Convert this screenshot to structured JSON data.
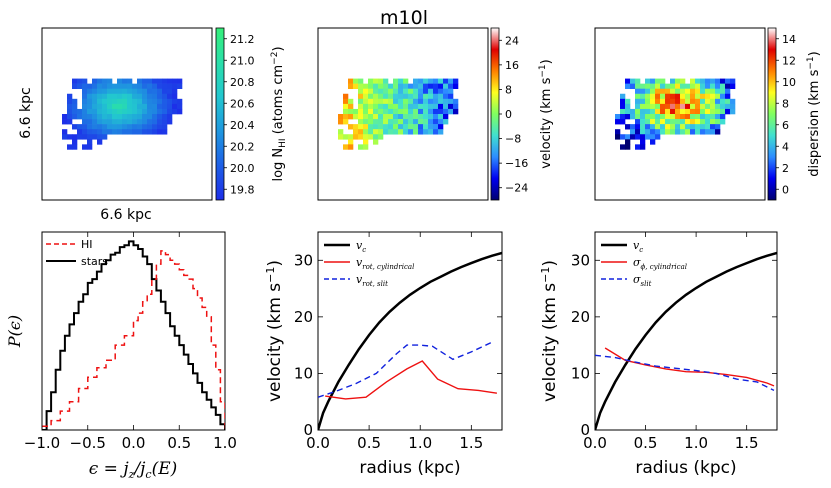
{
  "figure": {
    "title": "m10l",
    "map_axis_label": "6.6 kpc"
  },
  "colors": {
    "black": "#000000",
    "red": "#ee1111",
    "blue": "#1122dd"
  },
  "maps": [
    {
      "name": "HI column density",
      "colorbar_label": "log N_HI (atoms cm^-2)",
      "colorbar_label_html": "log N",
      "colorbar_sub": "HI",
      "colorbar_tail": " (atoms cm",
      "colorbar_sup": "−2",
      "colorbar_end": ")",
      "ticks": [
        "21.2",
        "21.0",
        "20.8",
        "20.6",
        "20.4",
        "20.2",
        "20.0",
        "19.8"
      ],
      "range": [
        19.7,
        21.35
      ],
      "colormap": [
        "#1d2ee8",
        "#1e5fe6",
        "#1f97df",
        "#22c7cf",
        "#2adfa9",
        "#35f07a"
      ]
    },
    {
      "name": "line-of-sight velocity",
      "colorbar_label": "velocity (km s^-1)",
      "ticks": [
        "24",
        "16",
        "8",
        "0",
        "−8",
        "−16",
        "−24"
      ],
      "range": [
        -30,
        30
      ],
      "colormap": [
        "#000070",
        "#0000f0",
        "#2d8cff",
        "#40e0d0",
        "#80ff60",
        "#ffff20",
        "#ff8000",
        "#e00000",
        "#ffffff"
      ]
    },
    {
      "name": "velocity dispersion",
      "colorbar_label": "dispersion (km s^-1)",
      "ticks": [
        "14",
        "12",
        "10",
        "8",
        "6",
        "4",
        "2",
        "0"
      ],
      "range": [
        0,
        15
      ],
      "colormap": [
        "#000070",
        "#0000f0",
        "#2d8cff",
        "#40e0d0",
        "#80ff60",
        "#ffff20",
        "#ff8000",
        "#e00000",
        "#ffffff"
      ]
    }
  ],
  "chart_data": [
    {
      "type": "line",
      "title": "",
      "xlabel": "ε = j_z / j_c(E)",
      "ylabel": "P(ε)",
      "xlim": [
        -1.0,
        1.0
      ],
      "xticks": [
        "−1.0",
        "−0.5",
        "0.0",
        "0.5",
        "1.0"
      ],
      "xtick_values": [
        -1.0,
        -0.5,
        0.0,
        0.5,
        1.0
      ],
      "ylim": [
        0,
        1.05
      ],
      "legend": "top-left",
      "series": [
        {
          "name": "stars",
          "color": "black",
          "style": "solid",
          "x": [
            -1.0,
            -0.95,
            -0.9,
            -0.85,
            -0.8,
            -0.75,
            -0.7,
            -0.65,
            -0.6,
            -0.55,
            -0.5,
            -0.45,
            -0.4,
            -0.35,
            -0.3,
            -0.25,
            -0.2,
            -0.15,
            -0.1,
            -0.05,
            0.0,
            0.05,
            0.1,
            0.15,
            0.2,
            0.25,
            0.3,
            0.35,
            0.4,
            0.45,
            0.5,
            0.55,
            0.6,
            0.65,
            0.7,
            0.75,
            0.8,
            0.85,
            0.9,
            0.95,
            1.0
          ],
          "y": [
            0.0,
            0.1,
            0.2,
            0.32,
            0.42,
            0.5,
            0.56,
            0.62,
            0.68,
            0.72,
            0.78,
            0.8,
            0.84,
            0.88,
            0.9,
            0.93,
            0.94,
            0.97,
            0.98,
            1.0,
            0.98,
            0.96,
            0.92,
            0.88,
            0.8,
            0.74,
            0.68,
            0.62,
            0.55,
            0.5,
            0.45,
            0.4,
            0.35,
            0.3,
            0.25,
            0.2,
            0.16,
            0.12,
            0.08,
            0.03,
            0.0
          ]
        },
        {
          "name": "HI",
          "color": "red",
          "style": "dashed",
          "x": [
            -1.0,
            -0.9,
            -0.8,
            -0.7,
            -0.6,
            -0.5,
            -0.4,
            -0.3,
            -0.2,
            -0.1,
            0.0,
            0.05,
            0.1,
            0.15,
            0.2,
            0.25,
            0.3,
            0.35,
            0.4,
            0.45,
            0.5,
            0.55,
            0.6,
            0.65,
            0.7,
            0.75,
            0.8,
            0.85,
            0.9,
            0.95,
            1.0
          ],
          "y": [
            0.02,
            0.05,
            0.1,
            0.15,
            0.22,
            0.28,
            0.33,
            0.37,
            0.45,
            0.5,
            0.58,
            0.62,
            0.68,
            0.72,
            0.8,
            0.88,
            0.95,
            0.93,
            0.9,
            0.88,
            0.85,
            0.82,
            0.8,
            0.75,
            0.7,
            0.65,
            0.6,
            0.45,
            0.32,
            0.15,
            0.0
          ]
        }
      ]
    },
    {
      "type": "line",
      "title": "",
      "xlabel": "radius (kpc)",
      "ylabel": "velocity (km s^-1)",
      "xlim": [
        0.0,
        1.8
      ],
      "ylim": [
        0,
        35
      ],
      "xticks": [
        "0.0",
        "0.5",
        "1.0",
        "1.5"
      ],
      "xtick_values": [
        0.0,
        0.5,
        1.0,
        1.5
      ],
      "yticks": [
        "0",
        "10",
        "20",
        "30"
      ],
      "ytick_values": [
        0,
        10,
        20,
        30
      ],
      "legend": "top-left",
      "series": [
        {
          "name": "v_c",
          "legend_main": "v",
          "legend_sub": "c",
          "color": "black",
          "style": "solid",
          "width": 2.5,
          "x": [
            0.0,
            0.05,
            0.1,
            0.2,
            0.3,
            0.4,
            0.5,
            0.6,
            0.7,
            0.8,
            0.9,
            1.0,
            1.1,
            1.2,
            1.3,
            1.4,
            1.5,
            1.6,
            1.7,
            1.8
          ],
          "y": [
            0.0,
            3.0,
            5.0,
            8.5,
            11.5,
            14.3,
            16.8,
            19.0,
            20.9,
            22.5,
            23.9,
            25.1,
            26.2,
            27.1,
            28.0,
            28.8,
            29.5,
            30.2,
            30.8,
            31.3
          ]
        },
        {
          "name": "v_rot, cylindrical",
          "legend_main": "v",
          "legend_sub": "rot, cylindrical",
          "color": "red",
          "style": "solid",
          "width": 1.4,
          "x": [
            0.07,
            0.27,
            0.47,
            0.67,
            0.87,
            1.02,
            1.17,
            1.37,
            1.57,
            1.75
          ],
          "y": [
            6.0,
            5.5,
            5.8,
            8.5,
            10.8,
            12.2,
            9.0,
            7.3,
            7.0,
            6.5
          ]
        },
        {
          "name": "v_rot, slit",
          "legend_main": "v",
          "legend_sub": "rot, slit",
          "color": "blue",
          "style": "dashed",
          "width": 1.4,
          "x": [
            0.0,
            0.17,
            0.37,
            0.57,
            0.77,
            0.87,
            1.0,
            1.12,
            1.32,
            1.5,
            1.7
          ],
          "y": [
            5.8,
            6.8,
            8.2,
            10.0,
            13.5,
            15.0,
            15.0,
            14.8,
            12.5,
            13.8,
            15.5
          ]
        }
      ]
    },
    {
      "type": "line",
      "title": "",
      "xlabel": "radius (kpc)",
      "ylabel": "velocity (km s^-1)",
      "xlim": [
        0.0,
        1.8
      ],
      "ylim": [
        0,
        35
      ],
      "xticks": [
        "0.0",
        "0.5",
        "1.0",
        "1.5"
      ],
      "xtick_values": [
        0.0,
        0.5,
        1.0,
        1.5
      ],
      "yticks": [
        "0",
        "10",
        "20",
        "30"
      ],
      "ytick_values": [
        0,
        10,
        20,
        30
      ],
      "legend": "top-left",
      "series": [
        {
          "name": "v_c",
          "legend_main": "v",
          "legend_sub": "c",
          "color": "black",
          "style": "solid",
          "width": 2.5,
          "x": [
            0.0,
            0.05,
            0.1,
            0.2,
            0.3,
            0.4,
            0.5,
            0.6,
            0.7,
            0.8,
            0.9,
            1.0,
            1.1,
            1.2,
            1.3,
            1.4,
            1.5,
            1.6,
            1.7,
            1.8
          ],
          "y": [
            0.0,
            3.0,
            5.0,
            8.5,
            11.5,
            14.3,
            16.8,
            19.0,
            20.9,
            22.5,
            23.9,
            25.1,
            26.2,
            27.1,
            28.0,
            28.8,
            29.5,
            30.2,
            30.8,
            31.3
          ]
        },
        {
          "name": "sigma_phi, cylindrical",
          "legend_main": "σ",
          "legend_sub": "ϕ, cylindrical",
          "color": "red",
          "style": "solid",
          "width": 1.4,
          "x": [
            0.1,
            0.3,
            0.5,
            0.7,
            0.9,
            1.1,
            1.3,
            1.5,
            1.7,
            1.77
          ],
          "y": [
            14.5,
            12.3,
            11.5,
            10.8,
            10.3,
            10.2,
            9.8,
            9.3,
            8.3,
            7.8
          ]
        },
        {
          "name": "sigma_slit",
          "legend_main": "σ",
          "legend_sub": "slit",
          "color": "blue",
          "style": "dashed",
          "width": 1.4,
          "x": [
            0.0,
            0.2,
            0.4,
            0.6,
            0.8,
            1.0,
            1.2,
            1.4,
            1.6,
            1.77
          ],
          "y": [
            13.2,
            12.8,
            12.0,
            11.3,
            10.9,
            10.5,
            10.0,
            9.0,
            8.5,
            7.0
          ]
        }
      ]
    }
  ]
}
